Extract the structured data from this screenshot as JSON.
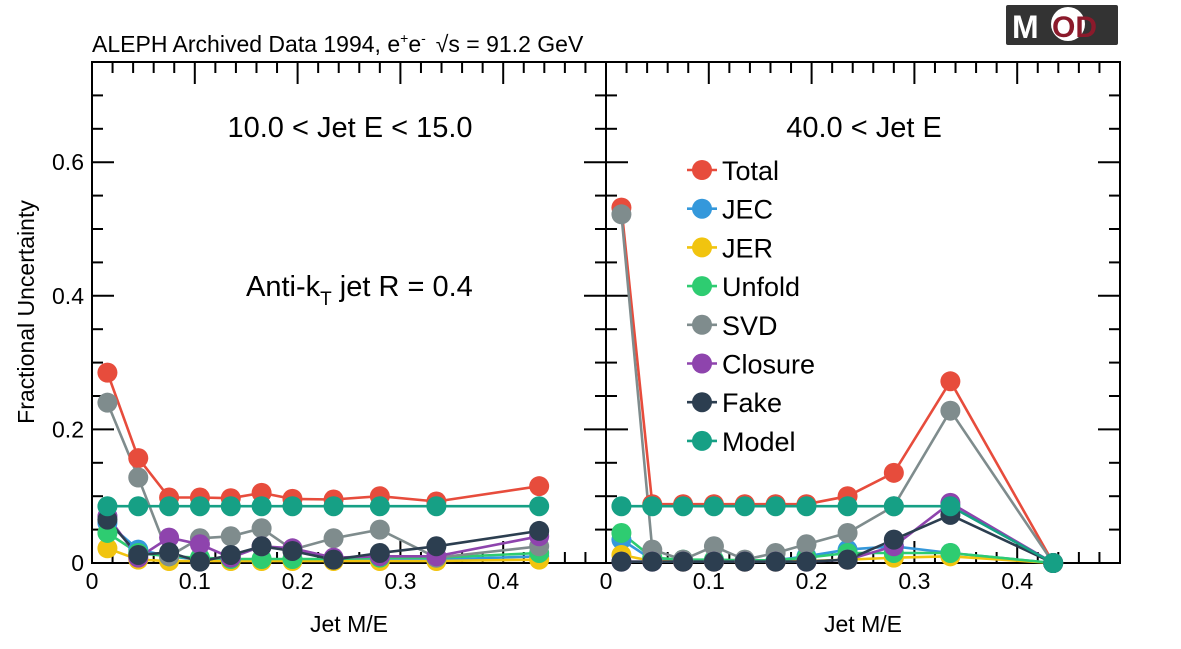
{
  "header": {
    "title_main": "ALEPH Archived Data 1994, e",
    "title_sup1": "+",
    "title_e": "e",
    "title_sup2": "-",
    "title_sqrt": "√s",
    "title_end": " = 91.2 GeV"
  },
  "logo": {
    "text_m": "M",
    "text_od": "OD",
    "bg_color": "#333333",
    "accent_color": "#8b1a2b"
  },
  "annotations": {
    "left_panel_label": "10.0 < Jet E < 15.0",
    "right_panel_label": "40.0 < Jet E",
    "algo_prefix": "Anti-k",
    "algo_sub": "T",
    "algo_suffix": " jet R = 0.4"
  },
  "chart_data": [
    {
      "type": "line",
      "title": "10.0 < Jet E < 15.0",
      "xlabel": "Jet M/E",
      "ylabel": "Fractional Uncertainty",
      "xlim": [
        0,
        0.5
      ],
      "ylim": [
        0,
        0.75
      ],
      "xticks": [
        "0",
        "0.1",
        "0.2",
        "0.3",
        "0.4"
      ],
      "yticks": [
        "0",
        "0.2",
        "0.4",
        "0.6"
      ],
      "x": [
        0.015,
        0.045,
        0.075,
        0.105,
        0.135,
        0.165,
        0.195,
        0.235,
        0.28,
        0.335,
        0.435
      ],
      "series": [
        {
          "name": "Total",
          "color": "#e74c3c",
          "values": [
            0.285,
            0.157,
            0.098,
            0.098,
            0.097,
            0.105,
            0.096,
            0.095,
            0.1,
            0.092,
            0.115
          ]
        },
        {
          "name": "JEC",
          "color": "#3498db",
          "values": [
            0.06,
            0.02,
            0.01,
            0.005,
            0.005,
            0.005,
            0.005,
            0.005,
            0.005,
            0.005,
            0.01
          ]
        },
        {
          "name": "JER",
          "color": "#f1c40f",
          "values": [
            0.022,
            0.005,
            0.003,
            0.003,
            0.003,
            0.003,
            0.003,
            0.003,
            0.003,
            0.003,
            0.005
          ]
        },
        {
          "name": "Unfold",
          "color": "#2ecc71",
          "values": [
            0.045,
            0.015,
            0.01,
            0.008,
            0.006,
            0.006,
            0.006,
            0.006,
            0.008,
            0.008,
            0.015
          ]
        },
        {
          "name": "SVD",
          "color": "#7f8c8d",
          "values": [
            0.24,
            0.128,
            0.01,
            0.037,
            0.04,
            0.052,
            0.02,
            0.037,
            0.05,
            0.008,
            0.025
          ]
        },
        {
          "name": "Closure",
          "color": "#8e44ad",
          "values": [
            0.07,
            0.008,
            0.038,
            0.028,
            0.008,
            0.025,
            0.022,
            0.008,
            0.01,
            0.01,
            0.04
          ]
        },
        {
          "name": "Fake",
          "color": "#2c3e50",
          "values": [
            0.065,
            0.012,
            0.016,
            0.002,
            0.012,
            0.025,
            0.018,
            0.005,
            0.015,
            0.025,
            0.048
          ]
        },
        {
          "name": "Model",
          "color": "#16a085",
          "values": [
            0.085,
            0.085,
            0.085,
            0.085,
            0.085,
            0.085,
            0.085,
            0.085,
            0.085,
            0.085,
            0.085
          ]
        }
      ]
    },
    {
      "type": "line",
      "title": "40.0 < Jet E",
      "xlabel": "Jet M/E",
      "ylabel": "",
      "xlim": [
        0,
        0.5
      ],
      "ylim": [
        0,
        0.75
      ],
      "xticks": [
        "0",
        "0.1",
        "0.2",
        "0.3",
        "0.4"
      ],
      "yticks": [],
      "x": [
        0.015,
        0.045,
        0.075,
        0.105,
        0.135,
        0.165,
        0.195,
        0.235,
        0.28,
        0.335,
        0.435
      ],
      "series": [
        {
          "name": "Total",
          "color": "#e74c3c",
          "values": [
            0.532,
            0.088,
            0.088,
            0.088,
            0.088,
            0.088,
            0.088,
            0.1,
            0.135,
            0.272,
            0.0
          ]
        },
        {
          "name": "JEC",
          "color": "#3498db",
          "values": [
            0.035,
            0.005,
            0.004,
            0.004,
            0.004,
            0.004,
            0.01,
            0.02,
            0.025,
            0.015,
            0.0
          ]
        },
        {
          "name": "JER",
          "color": "#f1c40f",
          "values": [
            0.012,
            0.003,
            0.002,
            0.002,
            0.002,
            0.002,
            0.003,
            0.005,
            0.008,
            0.01,
            0.0
          ]
        },
        {
          "name": "Unfold",
          "color": "#2ecc71",
          "values": [
            0.045,
            0.008,
            0.005,
            0.005,
            0.004,
            0.004,
            0.008,
            0.015,
            0.015,
            0.015,
            0.0
          ]
        },
        {
          "name": "SVD",
          "color": "#7f8c8d",
          "values": [
            0.522,
            0.02,
            0.005,
            0.025,
            0.005,
            0.015,
            0.028,
            0.045,
            0.085,
            0.228,
            0.0
          ]
        },
        {
          "name": "Closure",
          "color": "#8e44ad",
          "values": [
            0.002,
            0.002,
            0.002,
            0.002,
            0.002,
            0.002,
            0.002,
            0.005,
            0.025,
            0.09,
            0.0
          ]
        },
        {
          "name": "Fake",
          "color": "#2c3e50",
          "values": [
            0.002,
            0.002,
            0.002,
            0.002,
            0.002,
            0.002,
            0.002,
            0.005,
            0.035,
            0.072,
            0.0
          ]
        },
        {
          "name": "Model",
          "color": "#16a085",
          "values": [
            0.085,
            0.085,
            0.085,
            0.085,
            0.085,
            0.085,
            0.085,
            0.085,
            0.085,
            0.085,
            0.0
          ]
        }
      ],
      "legend_position": "inside-top"
    }
  ]
}
